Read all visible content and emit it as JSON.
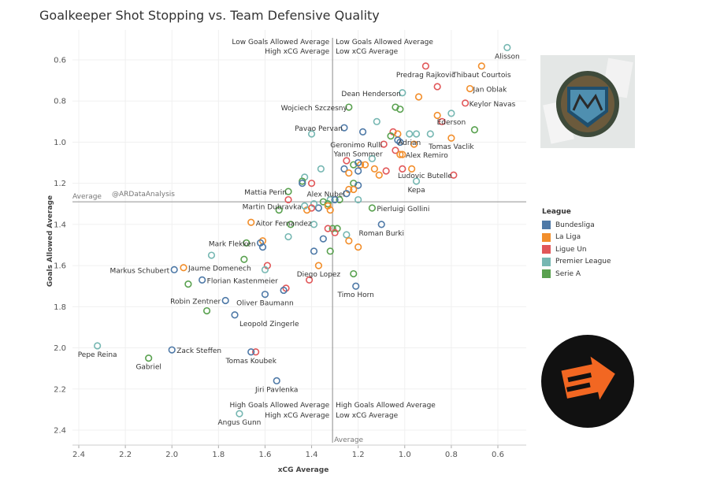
{
  "title": "Goalkeeper Shot Stopping vs. Team Defensive Quality",
  "watermark": "@ARDataAnalysis",
  "quadrants": {
    "top_left": [
      "Low Goals Allowed Average",
      "High xCG Average"
    ],
    "top_right": [
      "Low Goals Allowed Average",
      "Low xCG Average"
    ],
    "bottom_left": [
      "High Goals Allowed Average",
      "High xCG Average"
    ],
    "bottom_right": [
      "High Goals Allowed Average",
      "Low xCG Average"
    ],
    "avg_y_label": "Average",
    "avg_x_label": "Average"
  },
  "legend": {
    "title": "League",
    "items": [
      {
        "name": "Bundesliga",
        "color": "#4e79a7"
      },
      {
        "name": "La Liga",
        "color": "#f28e2b"
      },
      {
        "name": "Ligue Un",
        "color": "#e15759"
      },
      {
        "name": "Premier League",
        "color": "#76b7b2"
      },
      {
        "name": "Serie A",
        "color": "#59a14f"
      }
    ]
  },
  "chart_data": {
    "type": "scatter",
    "title": "Goalkeeper Shot Stopping vs. Team Defensive Quality",
    "xlabel": "xCG Average",
    "ylabel": "Goals Allowed Average",
    "xlim": [
      2.45,
      0.5
    ],
    "ylim": [
      0.5,
      2.45
    ],
    "x_reversed": true,
    "y_reversed": true,
    "x_ticks": [
      "2.4",
      "2.2",
      "2.0",
      "1.8",
      "1.6",
      "1.4",
      "1.2",
      "1.0",
      "0.8",
      "0.6"
    ],
    "y_ticks": [
      "0.6",
      "0.8",
      "1.0",
      "1.2",
      "1.4",
      "1.6",
      "1.8",
      "2.0",
      "2.2",
      "2.4"
    ],
    "x_average": 1.31,
    "y_average": 1.29,
    "labeled_points": [
      {
        "name": "Alisson",
        "x": 0.56,
        "y": 0.54,
        "league": "Premier League"
      },
      {
        "name": "Predrag Rajkovic",
        "x": 0.91,
        "y": 0.63,
        "league": "Ligue Un"
      },
      {
        "name": "Thibaut Courtois",
        "x": 0.67,
        "y": 0.63,
        "league": "La Liga"
      },
      {
        "name": "Jan Oblak",
        "x": 0.72,
        "y": 0.74,
        "league": "La Liga"
      },
      {
        "name": "Dean Henderson",
        "x": 1.01,
        "y": 0.76,
        "league": "Premier League"
      },
      {
        "name": "Keylor Navas",
        "x": 0.74,
        "y": 0.81,
        "league": "Ligue Un"
      },
      {
        "name": "Wojciech Szczesny",
        "x": 1.24,
        "y": 0.83,
        "league": "Serie A"
      },
      {
        "name": "Ederson",
        "x": 0.8,
        "y": 0.86,
        "league": "Premier League"
      },
      {
        "name": "Pavao Pervan",
        "x": 1.26,
        "y": 0.93,
        "league": "Bundesliga"
      },
      {
        "name": "Adrian",
        "x": 0.98,
        "y": 0.96,
        "league": "Premier League"
      },
      {
        "name": "Geronimo Rulli",
        "x": 1.09,
        "y": 1.01,
        "league": "Ligue Un"
      },
      {
        "name": "Tomas Vaclik",
        "x": 0.8,
        "y": 0.98,
        "league": "La Liga"
      },
      {
        "name": "Alex Remiro",
        "x": 1.01,
        "y": 1.06,
        "league": "La Liga"
      },
      {
        "name": "Yann Sommer",
        "x": 1.2,
        "y": 1.1,
        "league": "Bundesliga"
      },
      {
        "name": "Ludovic Butelle",
        "x": 0.79,
        "y": 1.16,
        "league": "Ligue Un"
      },
      {
        "name": "Kepa",
        "x": 0.95,
        "y": 1.19,
        "league": "Premier League"
      },
      {
        "name": "Mattia Perin",
        "x": 1.5,
        "y": 1.24,
        "league": "Serie A"
      },
      {
        "name": "Alex Nubel",
        "x": 1.25,
        "y": 1.25,
        "league": "Bundesliga"
      },
      {
        "name": "Martin Dubravka",
        "x": 1.43,
        "y": 1.31,
        "league": "Premier League"
      },
      {
        "name": "Pierluigi Gollini",
        "x": 1.14,
        "y": 1.32,
        "league": "Serie A"
      },
      {
        "name": "Aitor Fernandez",
        "x": 1.66,
        "y": 1.39,
        "league": "La Liga"
      },
      {
        "name": "Roman Burki",
        "x": 1.1,
        "y": 1.4,
        "league": "Bundesliga"
      },
      {
        "name": "Mark Flekken",
        "x": 1.62,
        "y": 1.49,
        "league": "Bundesliga"
      },
      {
        "name": "Diego Lopez",
        "x": 1.37,
        "y": 1.6,
        "league": "La Liga"
      },
      {
        "name": "Markus Schubert",
        "x": 1.99,
        "y": 1.62,
        "league": "Bundesliga"
      },
      {
        "name": "Jaume Domenech",
        "x": 1.95,
        "y": 1.61,
        "league": "La Liga"
      },
      {
        "name": "Florian Kastenmeier",
        "x": 1.87,
        "y": 1.67,
        "league": "Bundesliga"
      },
      {
        "name": "Timo Horn",
        "x": 1.21,
        "y": 1.7,
        "league": "Bundesliga"
      },
      {
        "name": "Robin Zentner",
        "x": 1.77,
        "y": 1.77,
        "league": "Bundesliga"
      },
      {
        "name": "Oliver Baumann",
        "x": 1.6,
        "y": 1.74,
        "league": "Bundesliga"
      },
      {
        "name": "Leopold Zingerle",
        "x": 1.73,
        "y": 1.84,
        "league": "Bundesliga"
      },
      {
        "name": "Pepe Reina",
        "x": 2.32,
        "y": 1.99,
        "league": "Premier League"
      },
      {
        "name": "Zack Steffen",
        "x": 2.0,
        "y": 2.01,
        "league": "Bundesliga"
      },
      {
        "name": "Gabriel",
        "x": 2.1,
        "y": 2.05,
        "league": "Serie A"
      },
      {
        "name": "Tomas Koubek",
        "x": 1.66,
        "y": 2.02,
        "league": "Bundesliga"
      },
      {
        "name": "Jiri Pavlenka",
        "x": 1.55,
        "y": 2.16,
        "league": "Bundesliga"
      },
      {
        "name": "Angus Gunn",
        "x": 1.71,
        "y": 2.32,
        "league": "Premier League"
      }
    ],
    "other_points": [
      {
        "x": 1.04,
        "y": 0.83,
        "league": "Serie A"
      },
      {
        "x": 1.02,
        "y": 0.84,
        "league": "Serie A"
      },
      {
        "x": 0.94,
        "y": 0.78,
        "league": "La Liga"
      },
      {
        "x": 0.86,
        "y": 0.73,
        "league": "Ligue Un"
      },
      {
        "x": 0.86,
        "y": 0.87,
        "league": "La Liga"
      },
      {
        "x": 0.84,
        "y": 0.9,
        "league": "Ligue Un"
      },
      {
        "x": 0.7,
        "y": 0.94,
        "league": "Serie A"
      },
      {
        "x": 1.12,
        "y": 0.9,
        "league": "Premier League"
      },
      {
        "x": 1.18,
        "y": 0.95,
        "league": "Bundesliga"
      },
      {
        "x": 1.05,
        "y": 0.95,
        "league": "Ligue Un"
      },
      {
        "x": 1.03,
        "y": 0.96,
        "league": "La Liga"
      },
      {
        "x": 0.95,
        "y": 0.96,
        "league": "Premier League"
      },
      {
        "x": 0.89,
        "y": 0.96,
        "league": "Premier League"
      },
      {
        "x": 1.4,
        "y": 0.96,
        "league": "Premier League"
      },
      {
        "x": 1.06,
        "y": 0.97,
        "league": "Serie A"
      },
      {
        "x": 1.03,
        "y": 0.99,
        "league": "Bundesliga"
      },
      {
        "x": 1.02,
        "y": 1.0,
        "league": "Bundesliga"
      },
      {
        "x": 0.96,
        "y": 1.01,
        "league": "La Liga"
      },
      {
        "x": 1.04,
        "y": 1.04,
        "league": "Ligue Un"
      },
      {
        "x": 1.02,
        "y": 1.06,
        "league": "La Liga"
      },
      {
        "x": 1.14,
        "y": 1.08,
        "league": "Premier League"
      },
      {
        "x": 1.25,
        "y": 1.09,
        "league": "Ligue Un"
      },
      {
        "x": 1.22,
        "y": 1.11,
        "league": "Serie A"
      },
      {
        "x": 1.19,
        "y": 1.11,
        "league": "La Liga"
      },
      {
        "x": 1.17,
        "y": 1.11,
        "league": "La Liga"
      },
      {
        "x": 1.26,
        "y": 1.13,
        "league": "Bundesliga"
      },
      {
        "x": 1.13,
        "y": 1.13,
        "league": "La Liga"
      },
      {
        "x": 1.08,
        "y": 1.14,
        "league": "Ligue Un"
      },
      {
        "x": 1.2,
        "y": 1.14,
        "league": "Bundesliga"
      },
      {
        "x": 1.24,
        "y": 1.15,
        "league": "La Liga"
      },
      {
        "x": 1.11,
        "y": 1.16,
        "league": "La Liga"
      },
      {
        "x": 1.36,
        "y": 1.13,
        "league": "Premier League"
      },
      {
        "x": 1.01,
        "y": 1.13,
        "league": "Ligue Un"
      },
      {
        "x": 0.97,
        "y": 1.13,
        "league": "La Liga"
      },
      {
        "x": 1.43,
        "y": 1.17,
        "league": "Premier League"
      },
      {
        "x": 1.44,
        "y": 1.19,
        "league": "Serie A"
      },
      {
        "x": 1.44,
        "y": 1.2,
        "league": "Bundesliga"
      },
      {
        "x": 1.4,
        "y": 1.2,
        "league": "Ligue Un"
      },
      {
        "x": 1.22,
        "y": 1.2,
        "league": "Serie A"
      },
      {
        "x": 1.2,
        "y": 1.21,
        "league": "Bundesliga"
      },
      {
        "x": 1.24,
        "y": 1.23,
        "league": "La Liga"
      },
      {
        "x": 1.22,
        "y": 1.23,
        "league": "La Liga"
      },
      {
        "x": 1.28,
        "y": 1.28,
        "league": "Serie A"
      },
      {
        "x": 1.32,
        "y": 1.28,
        "league": "Premier League"
      },
      {
        "x": 1.33,
        "y": 1.3,
        "league": "Serie A"
      },
      {
        "x": 1.3,
        "y": 1.28,
        "league": "Bundesliga"
      },
      {
        "x": 1.2,
        "y": 1.28,
        "league": "Premier League"
      },
      {
        "x": 1.37,
        "y": 1.32,
        "league": "Bundesliga"
      },
      {
        "x": 1.39,
        "y": 1.3,
        "league": "Premier League"
      },
      {
        "x": 1.4,
        "y": 1.32,
        "league": "Ligue Un"
      },
      {
        "x": 1.35,
        "y": 1.29,
        "league": "Serie A"
      },
      {
        "x": 1.33,
        "y": 1.31,
        "league": "La Liga"
      },
      {
        "x": 1.32,
        "y": 1.33,
        "league": "La Liga"
      },
      {
        "x": 1.5,
        "y": 1.28,
        "league": "Ligue Un"
      },
      {
        "x": 1.54,
        "y": 1.33,
        "league": "Serie A"
      },
      {
        "x": 1.42,
        "y": 1.33,
        "league": "La Liga"
      },
      {
        "x": 1.31,
        "y": 1.42,
        "league": "Serie A"
      },
      {
        "x": 1.33,
        "y": 1.42,
        "league": "Ligue Un"
      },
      {
        "x": 1.29,
        "y": 1.42,
        "league": "Serie A"
      },
      {
        "x": 1.3,
        "y": 1.44,
        "league": "Ligue Un"
      },
      {
        "x": 1.49,
        "y": 1.4,
        "league": "Serie A"
      },
      {
        "x": 1.39,
        "y": 1.4,
        "league": "Premier League"
      },
      {
        "x": 1.25,
        "y": 1.45,
        "league": "Premier League"
      },
      {
        "x": 1.24,
        "y": 1.48,
        "league": "La Liga"
      },
      {
        "x": 1.5,
        "y": 1.46,
        "league": "Premier League"
      },
      {
        "x": 1.35,
        "y": 1.47,
        "league": "Bundesliga"
      },
      {
        "x": 1.68,
        "y": 1.49,
        "league": "Serie A"
      },
      {
        "x": 1.61,
        "y": 1.48,
        "league": "La Liga"
      },
      {
        "x": 1.61,
        "y": 1.51,
        "league": "Bundesliga"
      },
      {
        "x": 1.2,
        "y": 1.51,
        "league": "La Liga"
      },
      {
        "x": 1.39,
        "y": 1.53,
        "league": "Bundesliga"
      },
      {
        "x": 1.32,
        "y": 1.53,
        "league": "Serie A"
      },
      {
        "x": 1.83,
        "y": 1.55,
        "league": "Premier League"
      },
      {
        "x": 1.69,
        "y": 1.57,
        "league": "Serie A"
      },
      {
        "x": 1.59,
        "y": 1.6,
        "league": "Ligue Un"
      },
      {
        "x": 1.6,
        "y": 1.62,
        "league": "Premier League"
      },
      {
        "x": 1.22,
        "y": 1.64,
        "league": "Serie A"
      },
      {
        "x": 1.41,
        "y": 1.67,
        "league": "Ligue Un"
      },
      {
        "x": 1.93,
        "y": 1.69,
        "league": "Serie A"
      },
      {
        "x": 1.51,
        "y": 1.71,
        "league": "Ligue Un"
      },
      {
        "x": 1.52,
        "y": 1.72,
        "league": "Bundesliga"
      },
      {
        "x": 1.85,
        "y": 1.82,
        "league": "Serie A"
      },
      {
        "x": 1.64,
        "y": 2.02,
        "league": "Ligue Un"
      }
    ]
  }
}
